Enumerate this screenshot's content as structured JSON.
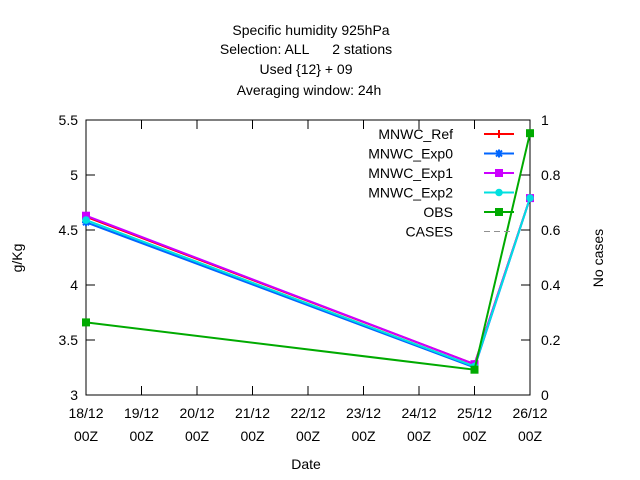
{
  "chart_data": {
    "type": "line",
    "title_lines": [
      "Specific humidity 925hPa",
      "Selection: ALL      2 stations",
      "Used {12} + 09",
      "Averaging window: 24h"
    ],
    "xlabel": "Date",
    "ylabel": "g/Kg",
    "y2label": "No cases",
    "categories": [
      [
        "18/12",
        "00Z"
      ],
      [
        "19/12",
        "00Z"
      ],
      [
        "20/12",
        "00Z"
      ],
      [
        "21/12",
        "00Z"
      ],
      [
        "22/12",
        "00Z"
      ],
      [
        "23/12",
        "00Z"
      ],
      [
        "24/12",
        "00Z"
      ],
      [
        "25/12",
        "00Z"
      ],
      [
        "26/12",
        "00Z"
      ]
    ],
    "ylim": [
      3,
      5.5
    ],
    "yticks": [
      3,
      3.5,
      4,
      4.5,
      5,
      5.5
    ],
    "ytick_labels": [
      "3",
      "3.5",
      "4",
      "4.5",
      "5",
      "5.5"
    ],
    "y2lim": [
      0,
      1
    ],
    "y2ticks": [
      0,
      0.2,
      0.4,
      0.6,
      0.8,
      1
    ],
    "y2tick_labels": [
      "0",
      "0.2",
      "0.4",
      "0.6",
      "0.8",
      "1"
    ],
    "grid": false,
    "legend_position": "top-right",
    "series": [
      {
        "name": "MNWC_Ref",
        "color": "#ff0000",
        "marker": "plus",
        "dash": "",
        "x": [
          0,
          7,
          8
        ],
        "values": [
          4.62,
          3.28,
          4.79
        ]
      },
      {
        "name": "MNWC_Exp0",
        "color": "#0066ff",
        "marker": "star",
        "dash": "",
        "x": [
          0,
          7,
          8
        ],
        "values": [
          4.57,
          3.25,
          4.79
        ]
      },
      {
        "name": "MNWC_Exp1",
        "color": "#cc00ff",
        "marker": "box",
        "dash": "",
        "x": [
          0,
          7,
          8
        ],
        "values": [
          4.63,
          3.28,
          4.79
        ]
      },
      {
        "name": "MNWC_Exp2",
        "color": "#00e0e0",
        "marker": "circle",
        "dash": "",
        "x": [
          0,
          7,
          8
        ],
        "values": [
          4.59,
          3.26,
          4.79
        ]
      },
      {
        "name": "OBS",
        "color": "#00aa00",
        "marker": "square",
        "dash": "",
        "x": [
          0,
          7,
          8
        ],
        "values": [
          3.66,
          3.23,
          5.38
        ]
      },
      {
        "name": "CASES",
        "color": "#909090",
        "marker": "",
        "dash": "6,4",
        "x": [],
        "values": []
      }
    ]
  }
}
